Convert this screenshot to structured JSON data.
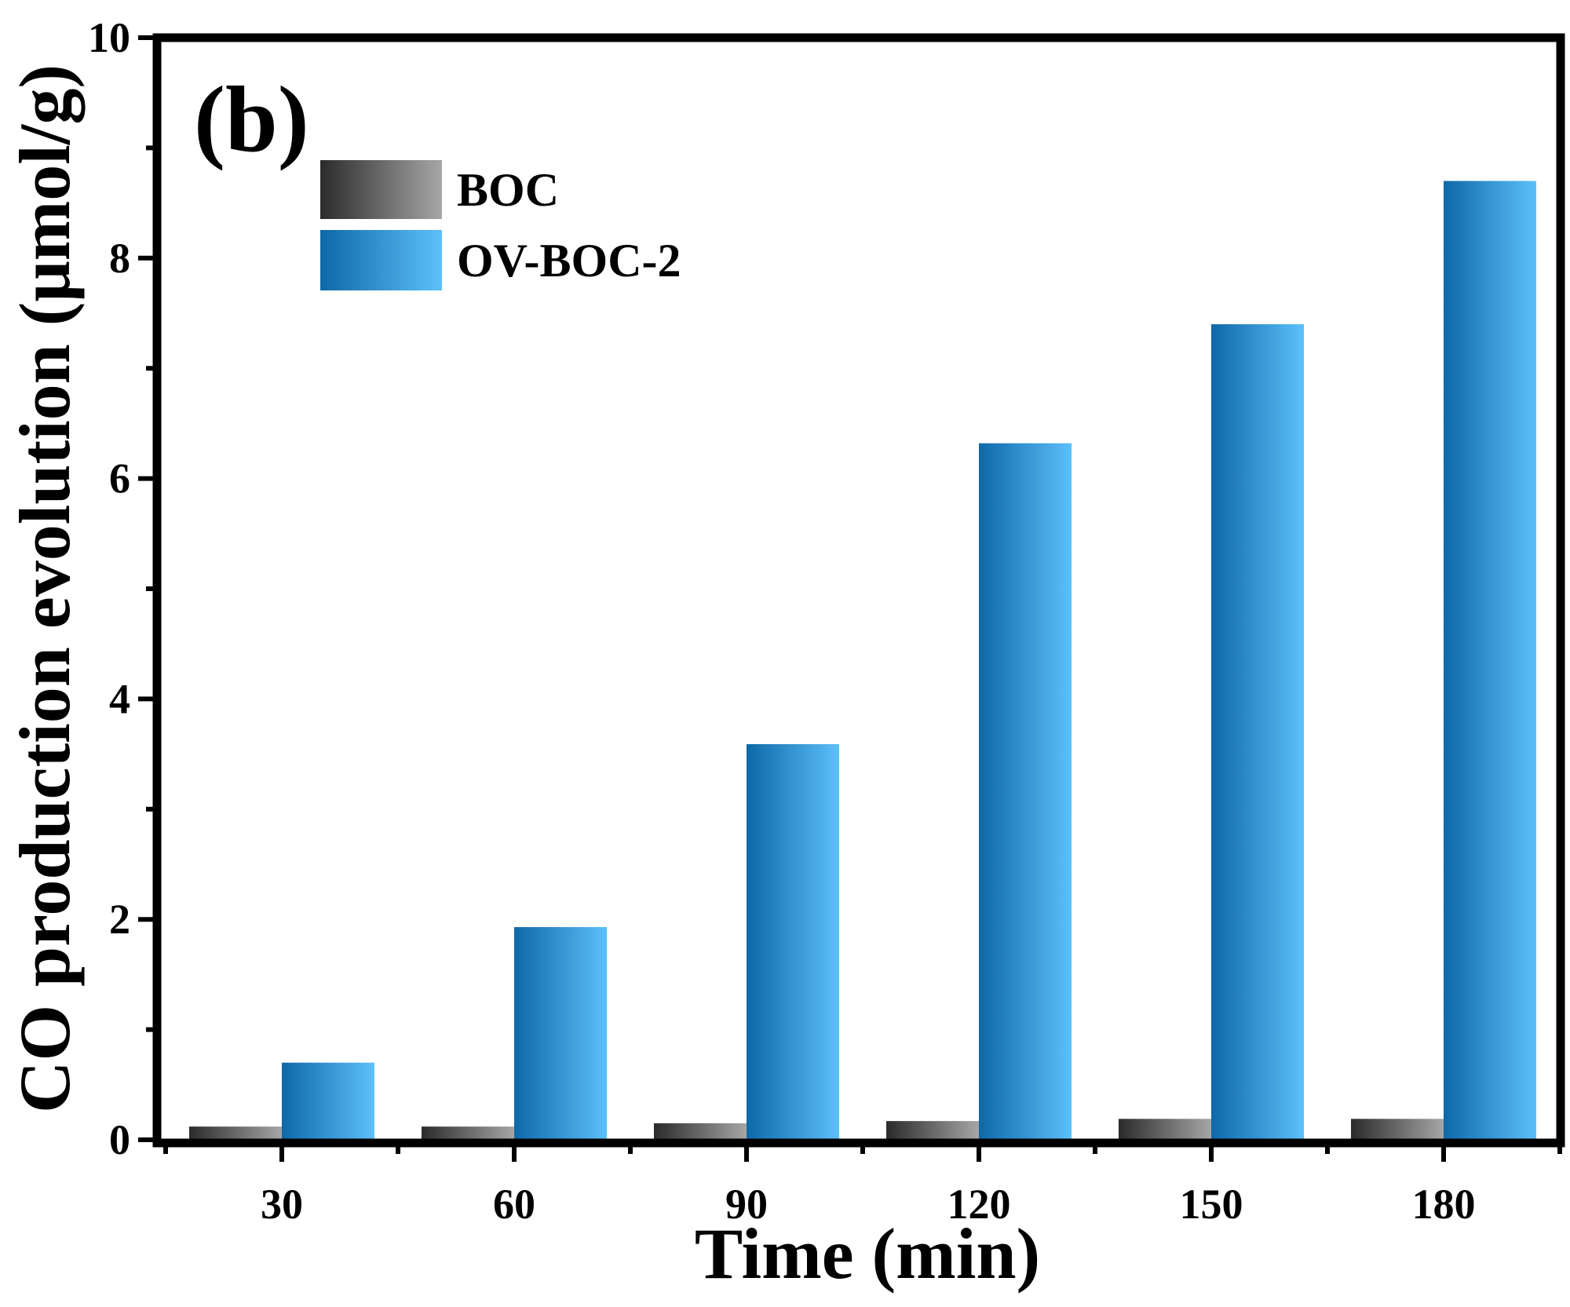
{
  "chart_data": {
    "type": "bar",
    "panel_label": "(b)",
    "categories": [
      "30",
      "60",
      "90",
      "120",
      "150",
      "180"
    ],
    "series": [
      {
        "name": "BOC",
        "values": [
          0.12,
          0.12,
          0.15,
          0.17,
          0.19,
          0.19
        ],
        "color_dark": "#2b2b2b",
        "color_light": "#a6a6a6"
      },
      {
        "name": "OV-BOC-2",
        "values": [
          0.7,
          1.93,
          3.59,
          6.32,
          7.4,
          8.7
        ],
        "color_dark": "#0e68a8",
        "color_light": "#5cc0fa"
      }
    ],
    "xlabel": "Time (min)",
    "ylabel": "CO production evolution (μmol/g)",
    "ylim": [
      0,
      10
    ],
    "yticks": [
      "0",
      "2",
      "4",
      "6",
      "8",
      "10"
    ],
    "grid": false,
    "legend_position": "top-left"
  }
}
